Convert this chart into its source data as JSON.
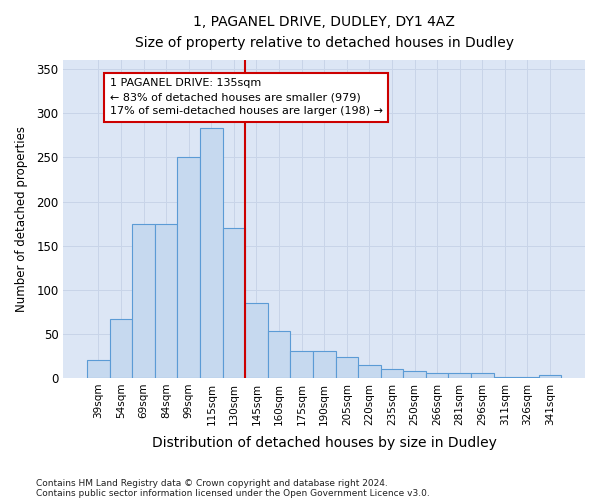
{
  "title_line1": "1, PAGANEL DRIVE, DUDLEY, DY1 4AZ",
  "title_line2": "Size of property relative to detached houses in Dudley",
  "xlabel": "Distribution of detached houses by size in Dudley",
  "ylabel": "Number of detached properties",
  "categories": [
    "39sqm",
    "54sqm",
    "69sqm",
    "84sqm",
    "99sqm",
    "115sqm",
    "130sqm",
    "145sqm",
    "160sqm",
    "175sqm",
    "190sqm",
    "205sqm",
    "220sqm",
    "235sqm",
    "250sqm",
    "266sqm",
    "281sqm",
    "296sqm",
    "311sqm",
    "326sqm",
    "341sqm"
  ],
  "values": [
    20,
    67,
    175,
    175,
    250,
    283,
    170,
    85,
    53,
    30,
    30,
    24,
    15,
    10,
    8,
    6,
    5,
    5,
    1,
    1,
    3
  ],
  "bar_color": "#c6d9ef",
  "bar_edge_color": "#5b9bd5",
  "grid_color": "#c8d4e8",
  "plot_bg_color": "#dce6f5",
  "fig_bg_color": "#ffffff",
  "vline_x_index": 6,
  "vline_color": "#cc0000",
  "annotation_line1": "1 PAGANEL DRIVE: 135sqm",
  "annotation_line2": "← 83% of detached houses are smaller (979)",
  "annotation_line3": "17% of semi-detached houses are larger (198) →",
  "annotation_box_color": "#ffffff",
  "annotation_box_edge": "#cc0000",
  "ylim": [
    0,
    360
  ],
  "yticks": [
    0,
    50,
    100,
    150,
    200,
    250,
    300,
    350
  ],
  "footer_line1": "Contains HM Land Registry data © Crown copyright and database right 2024.",
  "footer_line2": "Contains public sector information licensed under the Open Government Licence v3.0."
}
